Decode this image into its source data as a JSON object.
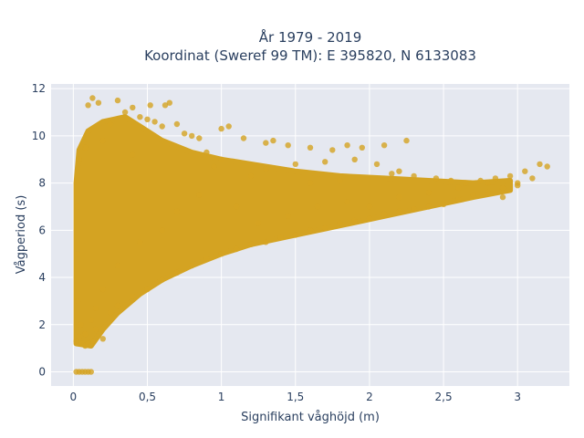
{
  "chart_data": {
    "type": "scatter",
    "title_line1": "År 1979 - 2019",
    "title_line2": "Koordinat (Sweref 99 TM): E 395820, N 6133083",
    "xlabel": "Signifikant våghöjd (m)",
    "ylabel": "Vågperiod (s)",
    "xlim": [
      -0.15,
      3.35
    ],
    "ylim": [
      -0.6,
      12.2
    ],
    "x_ticks": [
      {
        "value": 0,
        "label": "0"
      },
      {
        "value": 0.5,
        "label": "0,5"
      },
      {
        "value": 1,
        "label": "1"
      },
      {
        "value": 1.5,
        "label": "1,5"
      },
      {
        "value": 2,
        "label": "2"
      },
      {
        "value": 2.5,
        "label": "2,5"
      },
      {
        "value": 3,
        "label": "3"
      }
    ],
    "y_ticks": [
      {
        "value": 0,
        "label": "0"
      },
      {
        "value": 2,
        "label": "2"
      },
      {
        "value": 4,
        "label": "4"
      },
      {
        "value": 6,
        "label": "6"
      },
      {
        "value": 8,
        "label": "8"
      },
      {
        "value": 10,
        "label": "10"
      },
      {
        "value": 12,
        "label": "12"
      }
    ],
    "grid": true,
    "marker_color": "#d4a322",
    "plot_bg": "#e5e8f0",
    "points": [
      [
        0.02,
        0
      ],
      [
        0.04,
        0
      ],
      [
        0.06,
        0
      ],
      [
        0.08,
        0
      ],
      [
        0.1,
        0
      ],
      [
        0.12,
        0
      ],
      [
        0.02,
        1.3
      ],
      [
        0.04,
        1.5
      ],
      [
        0.06,
        1.2
      ],
      [
        0.08,
        1.1
      ],
      [
        0.1,
        1.2
      ],
      [
        0.13,
        1.3
      ],
      [
        0.2,
        1.4
      ],
      [
        0.05,
        2.0
      ],
      [
        0.15,
        1.8
      ],
      [
        0.25,
        2.5
      ],
      [
        0.3,
        2.8
      ],
      [
        0.4,
        3.2
      ],
      [
        0.5,
        3.5
      ],
      [
        0.6,
        3.9
      ],
      [
        0.7,
        4.2
      ],
      [
        0.8,
        4.5
      ],
      [
        0.9,
        4.8
      ],
      [
        1.0,
        5.0
      ],
      [
        1.1,
        5.2
      ],
      [
        1.2,
        5.4
      ],
      [
        1.3,
        5.5
      ],
      [
        1.4,
        5.7
      ],
      [
        1.5,
        5.8
      ],
      [
        1.6,
        6.0
      ],
      [
        1.7,
        6.1
      ],
      [
        1.8,
        6.3
      ],
      [
        1.9,
        6.4
      ],
      [
        2.0,
        6.5
      ],
      [
        2.1,
        6.7
      ],
      [
        2.2,
        6.8
      ],
      [
        2.3,
        6.9
      ],
      [
        2.4,
        7.0
      ],
      [
        2.5,
        7.1
      ],
      [
        2.6,
        7.3
      ],
      [
        2.7,
        7.5
      ],
      [
        2.8,
        7.6
      ],
      [
        2.9,
        7.8
      ],
      [
        3.0,
        8.0
      ],
      [
        3.1,
        8.2
      ],
      [
        3.15,
        8.8
      ],
      [
        3.2,
        8.7
      ],
      [
        0.1,
        11.3
      ],
      [
        0.13,
        11.6
      ],
      [
        0.17,
        11.4
      ],
      [
        0.3,
        11.5
      ],
      [
        0.4,
        11.2
      ],
      [
        0.52,
        11.3
      ],
      [
        0.62,
        11.3
      ],
      [
        0.65,
        11.4
      ],
      [
        0.35,
        11.0
      ],
      [
        0.45,
        10.8
      ],
      [
        0.5,
        10.7
      ],
      [
        0.55,
        10.6
      ],
      [
        0.6,
        10.4
      ],
      [
        0.7,
        10.5
      ],
      [
        0.75,
        10.1
      ],
      [
        0.8,
        10.0
      ],
      [
        0.85,
        9.9
      ],
      [
        1.0,
        10.3
      ],
      [
        1.05,
        10.4
      ],
      [
        1.15,
        9.9
      ],
      [
        1.3,
        9.7
      ],
      [
        1.35,
        9.8
      ],
      [
        1.45,
        9.6
      ],
      [
        1.6,
        9.5
      ],
      [
        1.75,
        9.4
      ],
      [
        1.85,
        9.6
      ],
      [
        1.95,
        9.5
      ],
      [
        2.1,
        9.6
      ],
      [
        2.25,
        9.8
      ],
      [
        1.3,
        8.6
      ],
      [
        1.5,
        8.8
      ],
      [
        1.7,
        8.9
      ],
      [
        1.9,
        9.0
      ],
      [
        2.05,
        8.8
      ],
      [
        2.15,
        8.4
      ],
      [
        2.2,
        8.5
      ],
      [
        2.3,
        8.3
      ],
      [
        2.45,
        8.2
      ],
      [
        2.55,
        8.1
      ],
      [
        2.65,
        8.0
      ],
      [
        2.75,
        8.1
      ],
      [
        2.85,
        8.2
      ],
      [
        2.95,
        8.3
      ],
      [
        3.05,
        8.5
      ],
      [
        2.9,
        7.4
      ],
      [
        3.0,
        7.9
      ],
      [
        1.8,
        8.1
      ],
      [
        1.6,
        8.0
      ],
      [
        1.2,
        8.3
      ],
      [
        1.0,
        9.0
      ],
      [
        0.9,
        9.3
      ],
      [
        0.95,
        8.7
      ],
      [
        0.85,
        7.5
      ],
      [
        0.7,
        6.8
      ],
      [
        0.6,
        6.0
      ],
      [
        0.45,
        5.5
      ],
      [
        0.3,
        4.5
      ],
      [
        0.2,
        3.5
      ],
      [
        0.15,
        2.7
      ],
      [
        0.12,
        2.2
      ],
      [
        0.08,
        1.6
      ],
      [
        0.03,
        3.0
      ],
      [
        0.03,
        5.0
      ],
      [
        0.03,
        7.0
      ],
      [
        0.04,
        9.0
      ],
      [
        0.08,
        9.5
      ],
      [
        0.2,
        9.8
      ],
      [
        0.25,
        10.5
      ],
      [
        0.4,
        9.2
      ],
      [
        1.1,
        7.0
      ],
      [
        1.25,
        6.3
      ],
      [
        1.45,
        6.6
      ],
      [
        1.65,
        7.0
      ],
      [
        1.85,
        7.2
      ],
      [
        2.0,
        7.0
      ],
      [
        2.2,
        7.4
      ],
      [
        2.4,
        7.6
      ],
      [
        2.6,
        7.8
      ],
      [
        2.8,
        8.0
      ]
    ]
  }
}
